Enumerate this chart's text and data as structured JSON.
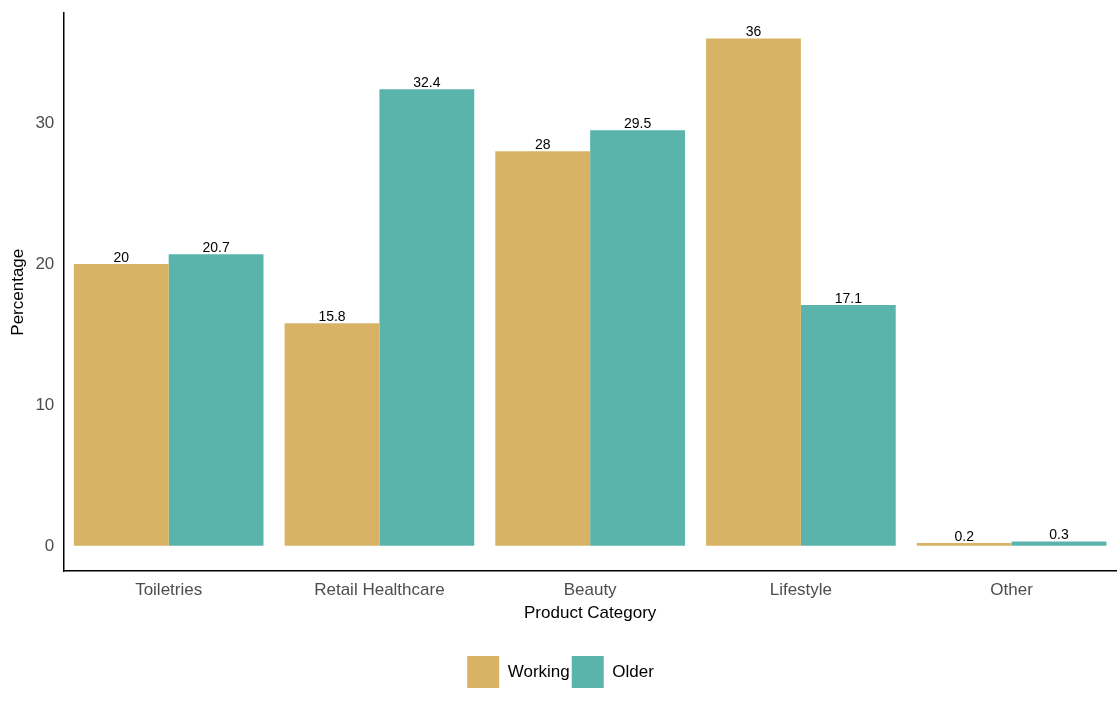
{
  "chart_data": {
    "type": "bar",
    "xlabel": "Product Category",
    "ylabel": "Percentage",
    "categories": [
      "Toiletries",
      "Retail Healthcare",
      "Beauty",
      "Lifestyle",
      "Other"
    ],
    "series": [
      {
        "name": "Working",
        "color": "#d8b365",
        "values": [
          20,
          15.8,
          28,
          36,
          0.2
        ]
      },
      {
        "name": "Older",
        "color": "#5ab4ac",
        "values": [
          20.7,
          32.4,
          29.5,
          17.1,
          0.3
        ]
      }
    ],
    "ylim": [
      -1.8,
      37.8
    ],
    "yticks": [
      0,
      10,
      20,
      30
    ],
    "grid": false,
    "legend": "bottom",
    "data_labels": true
  }
}
